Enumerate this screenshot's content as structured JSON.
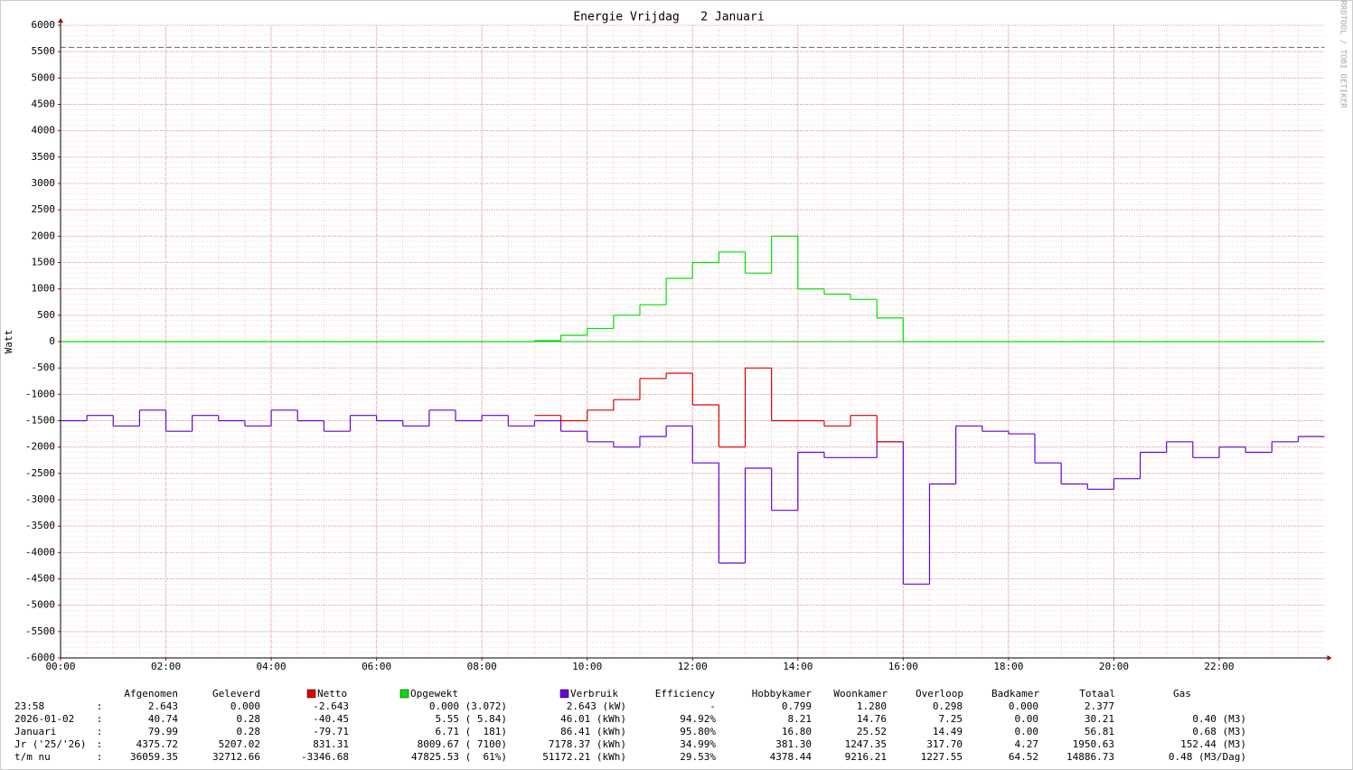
{
  "chart_data": {
    "type": "line",
    "title": "Energie Vrijdag   2 Januari",
    "y_label": "Watt",
    "watermark": "RRDTOOL / TOBI OETIKER",
    "x": [
      0,
      0.5,
      1,
      1.5,
      2,
      2.5,
      3,
      3.5,
      4,
      4.5,
      5,
      5.5,
      6,
      6.5,
      7,
      7.5,
      8,
      8.5,
      9,
      9.5,
      10,
      10.5,
      11,
      11.5,
      12,
      12.5,
      13,
      13.5,
      14,
      14.5,
      15,
      15.5,
      16,
      16.5,
      17,
      17.5,
      18,
      18.5,
      19,
      19.5,
      20,
      20.5,
      21,
      21.5,
      22,
      22.5,
      23,
      23.5
    ],
    "xlim": [
      0,
      24
    ],
    "xticks": [
      {
        "value": 0,
        "label": "00:00"
      },
      {
        "value": 2,
        "label": "02:00"
      },
      {
        "value": 4,
        "label": "04:00"
      },
      {
        "value": 6,
        "label": "06:00"
      },
      {
        "value": 8,
        "label": "08:00"
      },
      {
        "value": 10,
        "label": "10:00"
      },
      {
        "value": 12,
        "label": "12:00"
      },
      {
        "value": 14,
        "label": "14:00"
      },
      {
        "value": 16,
        "label": "16:00"
      },
      {
        "value": 18,
        "label": "18:00"
      },
      {
        "value": 20,
        "label": "20:00"
      },
      {
        "value": 22,
        "label": "22:00"
      }
    ],
    "ylim": [
      -6000,
      6000
    ],
    "yticks": [
      -6000,
      -5500,
      -5000,
      -4500,
      -4000,
      -3500,
      -3000,
      -2500,
      -2000,
      -1500,
      -1000,
      -500,
      0,
      500,
      1000,
      1500,
      2000,
      2500,
      3000,
      3500,
      4000,
      4500,
      5000,
      5500,
      6000
    ],
    "grid": true,
    "limit_line": 5580,
    "series": [
      {
        "name": "Verbruik",
        "color": "#6a00d8",
        "values": [
          -1500,
          -1400,
          -1600,
          -1300,
          -1700,
          -1400,
          -1500,
          -1600,
          -1300,
          -1500,
          -1700,
          -1400,
          -1500,
          -1600,
          -1300,
          -1500,
          -1400,
          -1600,
          -1500,
          -1700,
          -1900,
          -2000,
          -1800,
          -1600,
          -2300,
          -4200,
          -2400,
          -3200,
          -2100,
          -2200,
          -2200,
          -1900,
          -4600,
          -2700,
          -1600,
          -1700,
          -1750,
          -2300,
          -2700,
          -2800,
          -2600,
          -2100,
          -1900,
          -2200,
          -2000,
          -2100,
          -1900,
          -1800
        ]
      },
      {
        "name": "Netto",
        "color": "#e00000",
        "values": [
          null,
          null,
          null,
          null,
          null,
          null,
          null,
          null,
          null,
          null,
          null,
          null,
          null,
          null,
          null,
          null,
          null,
          null,
          -1400,
          -1500,
          -1300,
          -1100,
          -700,
          -600,
          -1200,
          -2000,
          -500,
          -1500,
          -1500,
          -1600,
          -1400,
          -1900,
          null,
          null,
          null,
          null,
          null,
          null,
          null,
          null,
          null,
          null,
          null,
          null,
          null,
          null,
          null,
          null
        ]
      },
      {
        "name": "Opgewekt",
        "color": "#00e000",
        "values": [
          0,
          0,
          0,
          0,
          0,
          0,
          0,
          0,
          0,
          0,
          0,
          0,
          0,
          0,
          0,
          0,
          0,
          0,
          20,
          120,
          250,
          500,
          700,
          1200,
          1500,
          1700,
          1300,
          2000,
          1000,
          900,
          800,
          450,
          0,
          0,
          0,
          0,
          0,
          0,
          0,
          0,
          0,
          0,
          0,
          0,
          0,
          0,
          0,
          0
        ]
      }
    ]
  },
  "table": {
    "headers": [
      "Afgenomen",
      "Geleverd",
      "Netto",
      "Opgewekt",
      "Verbruik",
      "Efficiency",
      "Hobbykamer",
      "Woonkamer",
      "Overloop",
      "Badkamer",
      "Totaal",
      "Gas"
    ],
    "separator": ":",
    "rows": [
      [
        "23:58",
        "2.643",
        "0.000",
        "-2.643",
        "0.000 (3.072)",
        "2.643 (kW)",
        "-",
        "0.799",
        "1.280",
        "0.298",
        "0.000",
        "2.377"
      ],
      [
        "2026-01-02",
        "40.74",
        "0.28",
        "-40.45",
        "5.55 ( 5.84)",
        "46.01 (kWh)",
        "94.92%",
        "8.21",
        "14.76",
        "7.25",
        "0.00",
        "30.21",
        "0.40 (M3)"
      ],
      [
        "Januari",
        "79.99",
        "0.28",
        "-79.71",
        "6.71 (  181)",
        "86.41 (kWh)",
        "95.80%",
        "16.80",
        "25.52",
        "14.49",
        "0.00",
        "56.81",
        "0.68 (M3)"
      ],
      [
        "Jr ('25/'26)",
        "4375.72",
        "5207.02",
        "831.31",
        "8009.67 ( 7100)",
        "7178.37 (kWh)",
        "34.99%",
        "381.30",
        "1247.35",
        "317.70",
        "4.27",
        "1950.63",
        "152.44 (M3)"
      ],
      [
        "t/m nu",
        "36059.35",
        "32712.66",
        "-3346.68",
        "47825.53 (  61%)",
        "51172.21 (kWh)",
        "29.53%",
        "4378.44",
        "9216.21",
        "1227.55",
        "64.52",
        "14886.73",
        "0.48 (M3/Dag)"
      ]
    ]
  }
}
